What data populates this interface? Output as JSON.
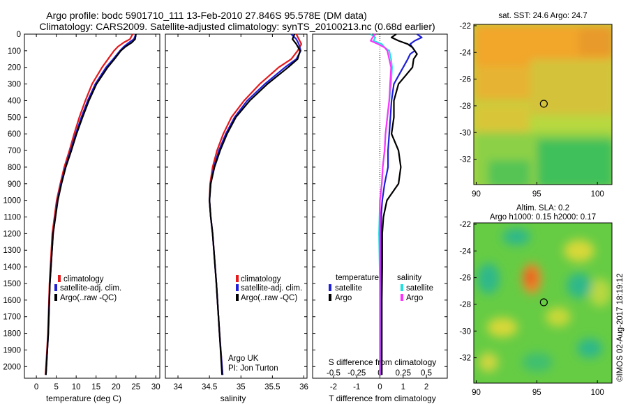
{
  "figure": {
    "title_line1": "Argo profile: bodc 5901710_111 13-Feb-2010 27.846S 95.578E (DM data)",
    "title_line2": "Climatology: CARS2009. Satellite-adjusted climatology: synTS_20100213.nc (0.68d earlier)",
    "credit": "©IMOS 02-Aug-2017 18:19:12"
  },
  "colors": {
    "climatology": "#e41a1c",
    "satellite": "#1f1fd6",
    "argo": "#000000",
    "sat_salinity": "#22e0e0",
    "argo_salinity": "#ff33ff"
  },
  "chart_data": [
    {
      "type": "line",
      "id": "temperature",
      "xlabel": "temperature (deg C)",
      "ylabel": "",
      "xlim": [
        -3,
        31
      ],
      "ylim": [
        2070,
        0
      ],
      "xticks": [
        "0",
        "5",
        "10",
        "15",
        "20",
        "25",
        "30"
      ],
      "yticks": [
        "0",
        "100",
        "200",
        "300",
        "400",
        "500",
        "600",
        "700",
        "800",
        "900",
        "1000",
        "1100",
        "1200",
        "1300",
        "1400",
        "1500",
        "1600",
        "1700",
        "1800",
        "1900",
        "2000"
      ],
      "legend": [
        "climatology",
        "satellite-adj. clim.",
        "Argo(..raw -QC)"
      ],
      "legend_position": "lower-left",
      "series": [
        {
          "name": "climatology",
          "depth": [
            0,
            30,
            50,
            75,
            100,
            150,
            200,
            300,
            400,
            500,
            600,
            700,
            800,
            900,
            1000,
            1200,
            1500,
            1800,
            2050
          ],
          "values": [
            24.2,
            23.5,
            22.0,
            20.5,
            19.5,
            18.0,
            16.5,
            14.0,
            12.3,
            10.8,
            9.5,
            8.3,
            7.0,
            6.0,
            5.1,
            4.0,
            3.3,
            2.9,
            2.3
          ]
        },
        {
          "name": "satellite-adj. clim.",
          "depth": [
            0,
            30,
            50,
            75,
            100,
            150,
            200,
            300,
            400,
            500,
            600,
            700,
            800,
            900,
            1000,
            1200,
            1500,
            1800,
            2050
          ],
          "values": [
            25.0,
            24.5,
            23.3,
            22.0,
            21.0,
            19.3,
            17.5,
            14.8,
            12.9,
            11.3,
            9.9,
            8.6,
            7.3,
            6.2,
            5.3,
            4.2,
            3.4,
            3.0,
            2.4
          ]
        },
        {
          "name": "Argo(..raw -QC)",
          "depth": [
            0,
            30,
            50,
            75,
            100,
            150,
            200,
            300,
            400,
            500,
            600,
            700,
            800,
            900,
            1000,
            1200,
            1500,
            1800,
            2050
          ],
          "values": [
            25.0,
            24.8,
            24.0,
            22.4,
            21.2,
            19.6,
            17.9,
            15.1,
            13.2,
            11.6,
            10.1,
            8.8,
            7.4,
            6.3,
            5.4,
            4.2,
            3.4,
            3.0,
            2.4
          ]
        }
      ]
    },
    {
      "type": "line",
      "id": "salinity",
      "xlabel": "salinity",
      "xlim": [
        33.8,
        36.05
      ],
      "ylim": [
        2070,
        0
      ],
      "xticks": [
        "34",
        "34.5",
        "35",
        "35.5",
        "36"
      ],
      "legend": [
        "climatology",
        "satellite-adj. clim.",
        "Argo(..raw -QC)"
      ],
      "legend_position": "lower-right",
      "annotation": [
        "Argo UK",
        "PI: Jon Turton"
      ],
      "series": [
        {
          "name": "climatology",
          "depth": [
            0,
            30,
            60,
            100,
            150,
            200,
            300,
            400,
            500,
            600,
            700,
            800,
            900,
            1000,
            1100,
            1200,
            1500,
            1800,
            2050
          ],
          "values": [
            35.88,
            35.92,
            35.96,
            35.9,
            35.8,
            35.6,
            35.3,
            35.05,
            34.85,
            34.72,
            34.62,
            34.55,
            34.51,
            34.5,
            34.52,
            34.55,
            34.61,
            34.66,
            34.71
          ]
        },
        {
          "name": "satellite-adj. clim.",
          "depth": [
            0,
            30,
            60,
            100,
            150,
            200,
            300,
            400,
            500,
            600,
            700,
            800,
            900,
            1000,
            1100,
            1200,
            1500,
            1800,
            2050
          ],
          "values": [
            35.8,
            35.88,
            35.92,
            35.95,
            35.88,
            35.7,
            35.38,
            35.1,
            34.9,
            34.76,
            34.65,
            34.57,
            34.52,
            34.5,
            34.52,
            34.55,
            34.61,
            34.66,
            34.71
          ]
        },
        {
          "name": "Argo(..raw -QC)",
          "depth": [
            0,
            30,
            60,
            100,
            150,
            200,
            300,
            400,
            500,
            600,
            700,
            800,
            900,
            1000,
            1100,
            1200,
            1500,
            1800,
            2050
          ],
          "values": [
            35.85,
            35.82,
            35.88,
            35.94,
            35.9,
            35.75,
            35.42,
            35.14,
            34.92,
            34.78,
            34.67,
            34.58,
            34.52,
            34.5,
            34.52,
            34.55,
            34.61,
            34.66,
            34.7
          ]
        }
      ]
    },
    {
      "type": "line",
      "id": "difference",
      "xlabel": "T difference from climatology",
      "x2label": "S difference from climatology",
      "xlim": [
        -2.9,
        2.9
      ],
      "ylim": [
        2070,
        0
      ],
      "xticks": [
        "-2",
        "-1",
        "0",
        "1",
        "2"
      ],
      "x2ticks": [
        "-0.5",
        "-0.25",
        "0",
        "0.25",
        "0.5"
      ],
      "legend_temperature_title": "temperature",
      "legend_salinity_title": "salinity",
      "legend_temperature": [
        "satellite",
        "Argo"
      ],
      "legend_salinity": [
        "satellite",
        "Argo"
      ],
      "series": [
        {
          "name": "temperature satellite",
          "depth": [
            0,
            20,
            40,
            60,
            80,
            100,
            120,
            150,
            200,
            250,
            300,
            400,
            500,
            600,
            700,
            800,
            900,
            1000,
            1100,
            1200,
            1400,
            1600,
            1800,
            2050
          ],
          "values": [
            1.6,
            1.8,
            1.5,
            1.3,
            1.4,
            1.5,
            1.3,
            1.2,
            1.0,
            0.8,
            0.6,
            0.5,
            0.45,
            0.4,
            0.35,
            0.35,
            0.2,
            0.1,
            0.05,
            0.05,
            0.05,
            0.05,
            0.05,
            0.05
          ]
        },
        {
          "name": "temperature Argo",
          "depth": [
            0,
            20,
            40,
            60,
            80,
            100,
            120,
            150,
            200,
            250,
            300,
            400,
            500,
            600,
            700,
            800,
            900,
            1000,
            1100,
            1200,
            1400,
            1600,
            1800,
            2050
          ],
          "values": [
            0.7,
            0.5,
            0.8,
            1.2,
            1.4,
            1.5,
            1.6,
            1.45,
            1.4,
            1.1,
            0.8,
            0.6,
            0.6,
            0.5,
            0.8,
            0.9,
            0.8,
            0.3,
            0.15,
            0.1,
            0.1,
            0.08,
            0.08,
            0.08
          ]
        },
        {
          "name": "salinity satellite",
          "depth": [
            0,
            20,
            40,
            60,
            80,
            100,
            150,
            200,
            300,
            400,
            500,
            600,
            700,
            800,
            900,
            1000,
            1200,
            1500,
            1800,
            2050
          ],
          "values": [
            -0.1,
            -0.05,
            -0.07,
            0.02,
            0.05,
            0.1,
            0.12,
            0.13,
            0.12,
            0.1,
            0.08,
            0.06,
            0.05,
            0.03,
            0.02,
            0.0,
            -0.01,
            0.0,
            0.0,
            0.0
          ]
        },
        {
          "name": "salinity Argo",
          "depth": [
            0,
            20,
            40,
            60,
            80,
            100,
            150,
            200,
            300,
            400,
            500,
            600,
            700,
            800,
            900,
            1000,
            1200,
            1500,
            1800,
            2050
          ],
          "values": [
            -0.05,
            -0.08,
            -0.1,
            -0.02,
            0.05,
            0.08,
            0.1,
            0.12,
            0.11,
            0.1,
            0.08,
            0.06,
            0.05,
            0.03,
            0.02,
            0.0,
            0.0,
            0.0,
            0.0,
            0.0
          ]
        }
      ]
    },
    {
      "type": "heatmap",
      "id": "sst-map",
      "title": "sat. SST: 24.6 Argo: 24.7",
      "xlim": [
        89.8,
        101.2
      ],
      "ylim": [
        -33.9,
        -21.9
      ],
      "xticks": [
        "90",
        "95",
        "100"
      ],
      "yticks": [
        "-22",
        "-24",
        "-26",
        "-28",
        "-30",
        "-32"
      ],
      "marker": {
        "lon": 95.578,
        "lat": -27.846
      }
    },
    {
      "type": "heatmap",
      "id": "sla-map",
      "title_line1": "Altim. SLA: 0.2",
      "title_line2": "Argo h1000: 0.15 h2000: 0.17",
      "xlim": [
        89.8,
        101.2
      ],
      "ylim": [
        -33.9,
        -21.9
      ],
      "xticks": [
        "90",
        "95",
        "100"
      ],
      "yticks": [
        "-22",
        "-24",
        "-26",
        "-28",
        "-30",
        "-32"
      ],
      "marker": {
        "lon": 95.578,
        "lat": -27.846
      }
    }
  ]
}
